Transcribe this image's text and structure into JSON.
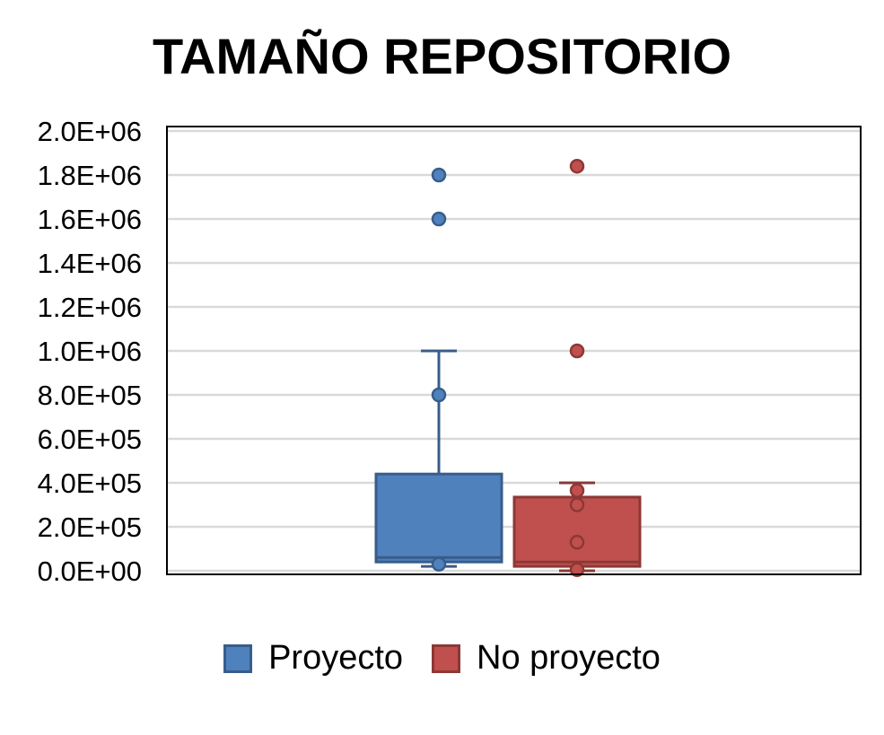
{
  "chart_data": {
    "type": "box",
    "title": "TAMAÑO REPOSITORIO",
    "xlabel": "",
    "ylabel": "",
    "ylim": [
      0,
      2000000
    ],
    "y_ticks": [
      0,
      200000,
      400000,
      600000,
      800000,
      1000000,
      1200000,
      1400000,
      1600000,
      1800000,
      2000000
    ],
    "y_tick_labels": [
      "0.0E+00",
      "2.0E+05",
      "4.0E+05",
      "6.0E+05",
      "8.0E+05",
      "1.0E+06",
      "1.2E+06",
      "1.4E+06",
      "1.6E+06",
      "1.8E+06",
      "2.0E+06"
    ],
    "grid": true,
    "legend_position": "bottom",
    "series": [
      {
        "name": "Proyecto",
        "color": "#4F81BD",
        "border_color": "#385D8A",
        "whisker_low": 20000,
        "q1": 40000,
        "median": 60000,
        "q3": 440000,
        "whisker_high": 1000000,
        "points": [
          30000,
          800000,
          1600000,
          1800000
        ]
      },
      {
        "name": "No proyecto",
        "color": "#C0504D",
        "border_color": "#8C3836",
        "whisker_low": 0,
        "q1": 20000,
        "median": 40000,
        "q3": 335000,
        "whisker_high": 400000,
        "points": [
          5000,
          130000,
          300000,
          365000,
          1000000,
          1840000
        ]
      }
    ]
  }
}
